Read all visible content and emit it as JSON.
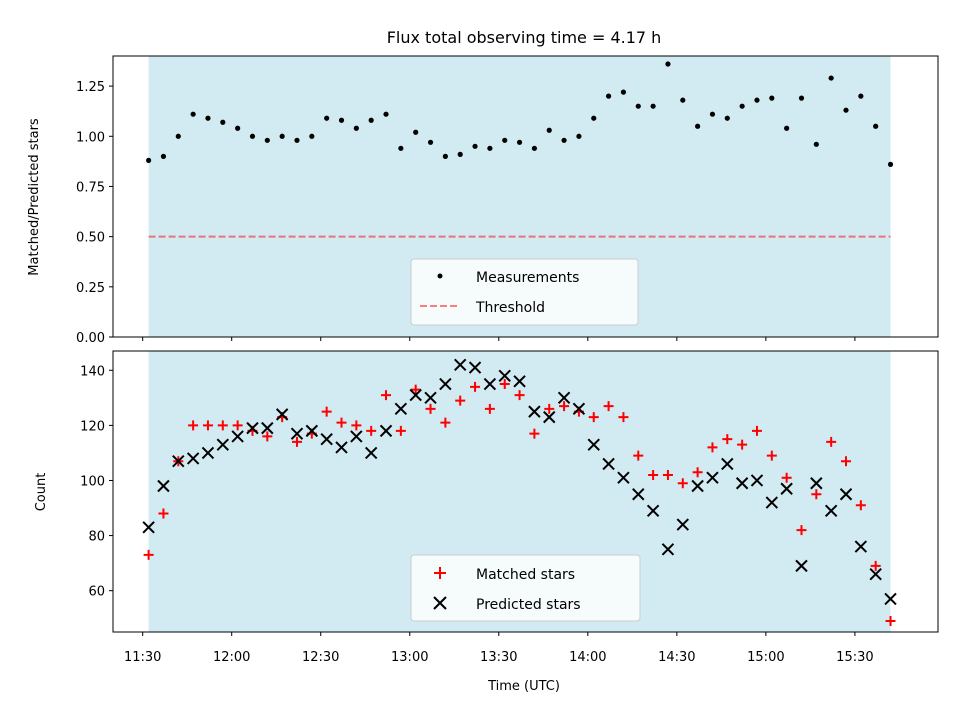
{
  "colors": {
    "background": "#ffffff",
    "span": "#add8e6",
    "threshold": "#ff0000",
    "matched": "#ff0000",
    "predicted": "#000000",
    "measurement": "#000000"
  },
  "chart_data": [
    {
      "type": "scatter",
      "title": "Flux total observing time = 4.17 h",
      "xlabel": "",
      "ylabel": "Matched/Predicted stars",
      "xlim_minutes": [
        680,
        958
      ],
      "ylim": [
        0,
        1.4
      ],
      "yticks": [
        0.0,
        0.25,
        0.5,
        0.75,
        1.0,
        1.25
      ],
      "ytick_labels": [
        "0.00",
        "0.25",
        "0.50",
        "0.75",
        "1.00",
        "1.25"
      ],
      "observing_span_minutes": [
        692,
        942
      ],
      "threshold": 0.5,
      "legend_location": "lower center",
      "legend": [
        "Measurements",
        "Threshold"
      ],
      "series": [
        {
          "name": "Measurements",
          "x": [
            692,
            697,
            702,
            707,
            712,
            717,
            722,
            727,
            732,
            737,
            742,
            747,
            752,
            757,
            762,
            767,
            772,
            777,
            782,
            787,
            792,
            797,
            802,
            807,
            812,
            817,
            822,
            827,
            832,
            837,
            842,
            847,
            852,
            857,
            862,
            867,
            872,
            877,
            882,
            887,
            892,
            897,
            902,
            907,
            912,
            917,
            922,
            927,
            932,
            937,
            942
          ],
          "values": [
            0.88,
            0.9,
            1.0,
            1.11,
            1.09,
            1.07,
            1.04,
            1.0,
            0.98,
            1.0,
            0.98,
            1.0,
            1.09,
            1.08,
            1.04,
            1.08,
            1.11,
            0.94,
            1.02,
            0.97,
            0.9,
            0.91,
            0.95,
            0.94,
            0.98,
            0.97,
            0.94,
            1.03,
            0.98,
            1.0,
            1.09,
            1.2,
            1.22,
            1.15,
            1.15,
            1.36,
            1.18,
            1.05,
            1.11,
            1.09,
            1.15,
            1.18,
            1.19,
            1.04,
            1.19,
            0.96,
            1.29,
            1.13,
            1.2,
            1.05,
            0.86
          ]
        }
      ]
    },
    {
      "type": "scatter",
      "title": "",
      "xlabel": "Time (UTC)",
      "ylabel": "Count",
      "xlim_minutes": [
        680,
        958
      ],
      "ylim": [
        45,
        147
      ],
      "yticks": [
        60,
        80,
        100,
        120,
        140
      ],
      "ytick_labels": [
        "60",
        "80",
        "100",
        "120",
        "140"
      ],
      "xticks_minutes": [
        690,
        720,
        750,
        780,
        810,
        840,
        870,
        900,
        930
      ],
      "xtick_labels": [
        "11:30",
        "12:00",
        "12:30",
        "13:00",
        "13:30",
        "14:00",
        "14:30",
        "15:00",
        "15:30"
      ],
      "observing_span_minutes": [
        692,
        942
      ],
      "legend_location": "lower center",
      "legend": [
        "Matched stars",
        "Predicted stars"
      ],
      "series": [
        {
          "name": "Matched stars",
          "marker": "plus",
          "x": [
            692,
            697,
            702,
            707,
            712,
            717,
            722,
            727,
            732,
            737,
            742,
            747,
            752,
            757,
            762,
            767,
            772,
            777,
            782,
            787,
            792,
            797,
            802,
            807,
            812,
            817,
            822,
            827,
            832,
            837,
            842,
            847,
            852,
            857,
            862,
            867,
            872,
            877,
            882,
            887,
            892,
            897,
            902,
            907,
            912,
            917,
            922,
            927,
            932,
            937,
            942
          ],
          "values": [
            73,
            88,
            107,
            120,
            120,
            120,
            120,
            118,
            116,
            123,
            114,
            117,
            125,
            121,
            120,
            118,
            131,
            118,
            133,
            126,
            121,
            129,
            134,
            126,
            135,
            131,
            117,
            126,
            127,
            125,
            123,
            127,
            123,
            109,
            102,
            102,
            99,
            103,
            112,
            115,
            113,
            118,
            109,
            101,
            82,
            95,
            114,
            107,
            91,
            69,
            49
          ]
        },
        {
          "name": "Predicted stars",
          "marker": "x",
          "x": [
            692,
            697,
            702,
            707,
            712,
            717,
            722,
            727,
            732,
            737,
            742,
            747,
            752,
            757,
            762,
            767,
            772,
            777,
            782,
            787,
            792,
            797,
            802,
            807,
            812,
            817,
            822,
            827,
            832,
            837,
            842,
            847,
            852,
            857,
            862,
            867,
            872,
            877,
            882,
            887,
            892,
            897,
            902,
            907,
            912,
            917,
            922,
            927,
            932,
            937,
            942
          ],
          "values": [
            83,
            98,
            107,
            108,
            110,
            113,
            116,
            119,
            119,
            124,
            117,
            118,
            115,
            112,
            116,
            110,
            118,
            126,
            131,
            130,
            135,
            142,
            141,
            135,
            138,
            136,
            125,
            123,
            130,
            126,
            113,
            106,
            101,
            95,
            89,
            75,
            84,
            98,
            101,
            106,
            99,
            100,
            92,
            97,
            69,
            99,
            89,
            95,
            76,
            66,
            57
          ]
        }
      ]
    }
  ]
}
